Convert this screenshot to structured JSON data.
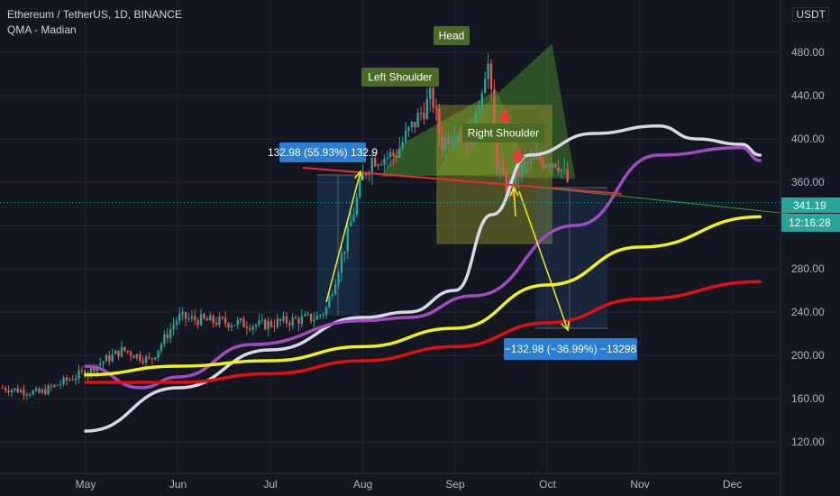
{
  "header": {
    "symbol_line": "Ethereum / TetherUS, 1D, BINANCE",
    "indicator_line": "QMA - Madian",
    "currency": "USDT"
  },
  "colors": {
    "background": "#131722",
    "up": "#26a69a",
    "down": "#ef5350",
    "white_ma": "#d8d8e8",
    "purple_ma": "#a04cc0",
    "yellow_ma": "#f0f01a",
    "red_ma": "#e01010",
    "neckline": "#e03030",
    "label_green": "#4a6b26",
    "label_blue": "#2a7fd4",
    "price_tag": "#26a69a",
    "box_fill": "#a0a028"
  },
  "annotations": {
    "head": "Head",
    "left_shoulder": "Left Shoulder",
    "right_shoulder": "Right Shoulder",
    "measure_up": "132.98 (55.93%) 132.9",
    "measure_down": "−132.98 (−36.99%) −13298"
  },
  "price_axis": {
    "current_price": "341.19",
    "countdown": "12:16:28"
  },
  "chart_data": {
    "type": "candlestick",
    "y_ticks": [
      120,
      160,
      200,
      240,
      280,
      320,
      360,
      400,
      440,
      480
    ],
    "y_tick_labels": [
      "120.00",
      "160.00",
      "200.00",
      "240.00",
      "280.00",
      "320.00",
      "360.00",
      "400.00",
      "440.00",
      "480.00"
    ],
    "x_tick_labels": [
      "May",
      "Jun",
      "Jul",
      "Aug",
      "Sep",
      "Oct",
      "Nov",
      "Dec"
    ],
    "ylim": [
      96,
      520
    ],
    "current_price": 341.19,
    "moving_averages": [
      {
        "color_key": "white_ma",
        "points": [
          [
            0,
            130
          ],
          [
            1,
            170
          ],
          [
            2,
            205
          ],
          [
            3,
            235
          ],
          [
            3.5,
            240
          ],
          [
            4,
            260
          ],
          [
            4.4,
            330
          ],
          [
            4.8,
            385
          ],
          [
            5.5,
            405
          ],
          [
            6.2,
            412
          ],
          [
            6.6,
            400
          ],
          [
            7.1,
            395
          ],
          [
            7.3,
            385
          ]
        ]
      },
      {
        "color_key": "purple_ma",
        "points": [
          [
            0,
            190
          ],
          [
            0.6,
            170
          ],
          [
            1,
            180
          ],
          [
            1.8,
            210
          ],
          [
            3,
            232
          ],
          [
            3.5,
            235
          ],
          [
            4.2,
            255
          ],
          [
            5.3,
            320
          ],
          [
            6.2,
            385
          ],
          [
            7.1,
            392
          ],
          [
            7.3,
            380
          ]
        ]
      },
      {
        "color_key": "yellow_ma",
        "points": [
          [
            0,
            182
          ],
          [
            1,
            190
          ],
          [
            2,
            195
          ],
          [
            3,
            208
          ],
          [
            4,
            225
          ],
          [
            5,
            265
          ],
          [
            6,
            300
          ],
          [
            7.3,
            328
          ]
        ]
      },
      {
        "color_key": "red_ma",
        "points": [
          [
            0,
            175
          ],
          [
            1,
            175
          ],
          [
            2,
            183
          ],
          [
            3,
            195
          ],
          [
            4,
            208
          ],
          [
            5,
            230
          ],
          [
            6,
            252
          ],
          [
            7.3,
            268
          ]
        ]
      }
    ]
  }
}
